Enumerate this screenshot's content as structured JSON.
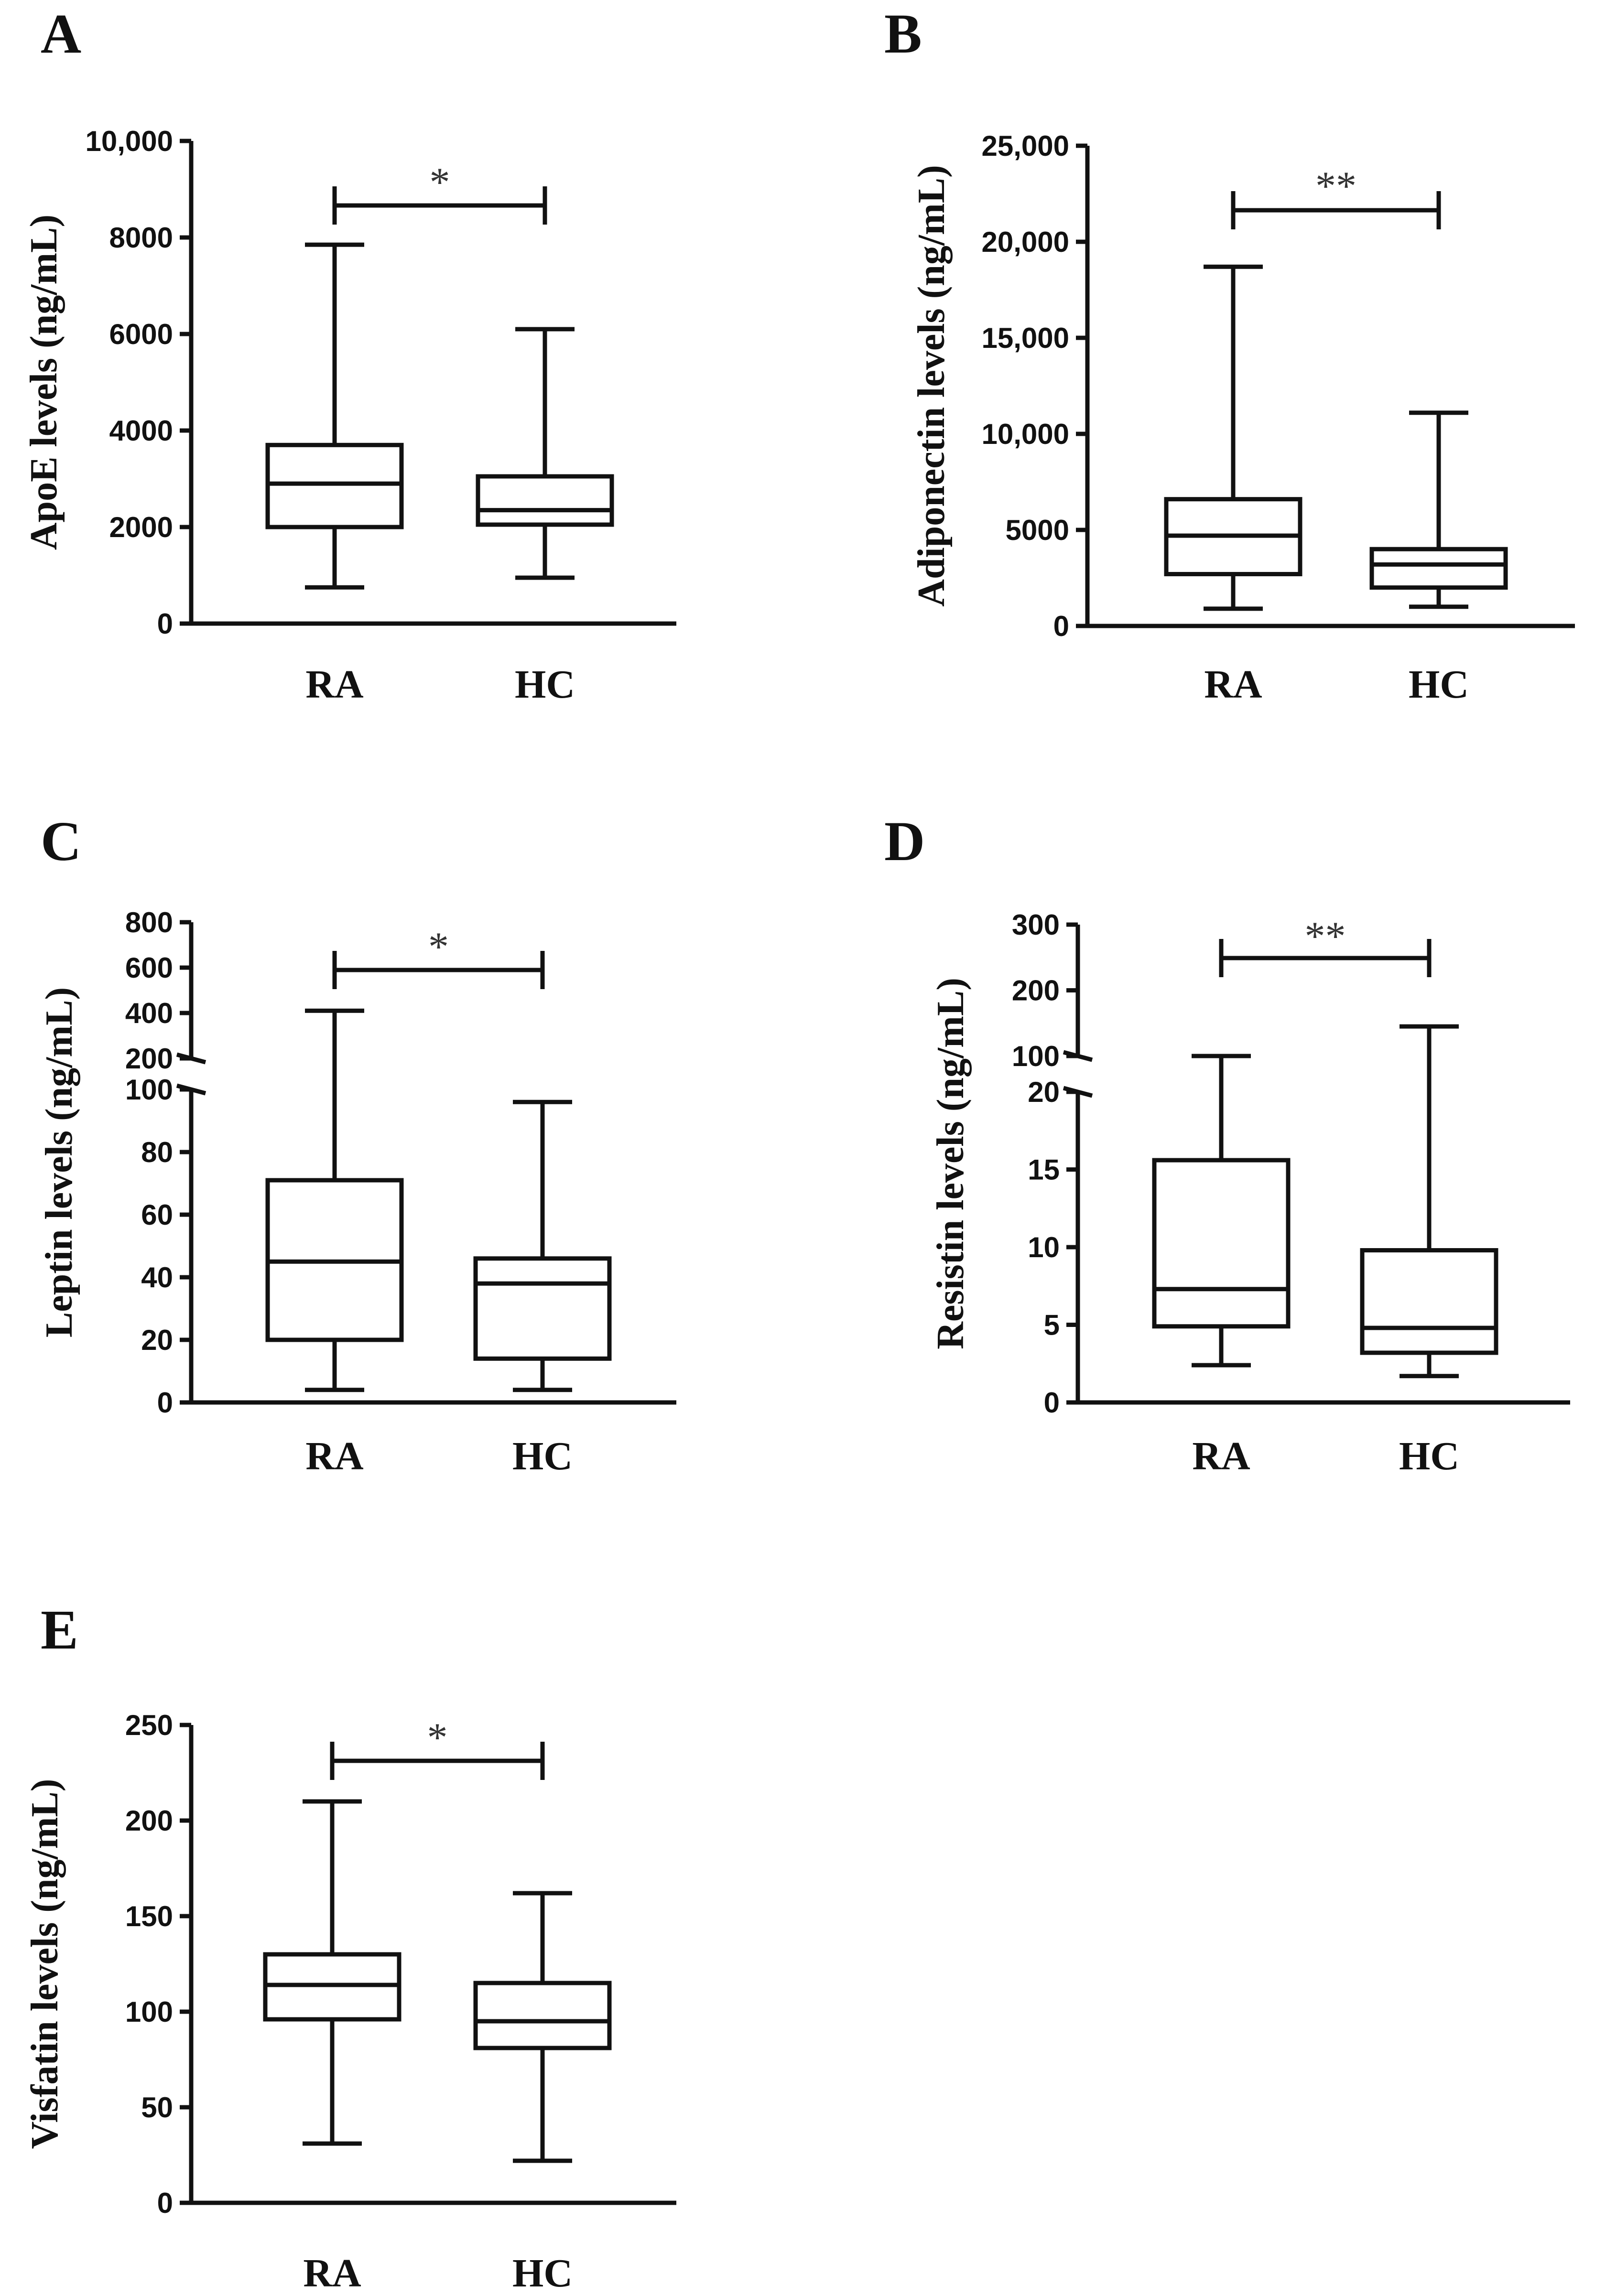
{
  "chart_data": [
    {
      "panel": "A",
      "type": "boxplot",
      "ylabel": "ApoE levels (ng/mL)",
      "categories": [
        "RA",
        "HC"
      ],
      "ylim": [
        0,
        10000
      ],
      "yticks": [
        0,
        2000,
        4000,
        6000,
        8000,
        10000
      ],
      "ytick_labels": [
        "0",
        "2000",
        "4000",
        "6000",
        "8000",
        "10,000"
      ],
      "boxes": [
        {
          "name": "RA",
          "min": 750,
          "q1": 2000,
          "median": 2900,
          "q3": 3700,
          "max": 7850
        },
        {
          "name": "HC",
          "min": 950,
          "q1": 2050,
          "median": 2350,
          "q3": 3050,
          "max": 6100
        }
      ],
      "significance": "*"
    },
    {
      "panel": "B",
      "type": "boxplot",
      "ylabel": "Adiponectin levels (ng/mL)",
      "categories": [
        "RA",
        "HC"
      ],
      "ylim": [
        0,
        25000
      ],
      "yticks": [
        0,
        5000,
        10000,
        15000,
        20000,
        25000
      ],
      "ytick_labels": [
        "0",
        "5000",
        "10,000",
        "15,000",
        "20,000",
        "25,000"
      ],
      "boxes": [
        {
          "name": "RA",
          "min": 900,
          "q1": 2700,
          "median": 4700,
          "q3": 6600,
          "max": 18700
        },
        {
          "name": "HC",
          "min": 1000,
          "q1": 2000,
          "median": 3200,
          "q3": 4000,
          "max": 11100
        }
      ],
      "significance": "**"
    },
    {
      "panel": "C",
      "type": "boxplot",
      "ylabel": "Leptin levels (ng/mL)",
      "categories": [
        "RA",
        "HC"
      ],
      "broken_axis": true,
      "lower_ylim": [
        0,
        100
      ],
      "lower_yticks": [
        0,
        20,
        40,
        60,
        80,
        100
      ],
      "lower_ytick_labels": [
        "0",
        "20",
        "40",
        "60",
        "80",
        "100"
      ],
      "upper_ylim": [
        200,
        800
      ],
      "upper_yticks": [
        200,
        400,
        600,
        800
      ],
      "upper_ytick_labels": [
        "200",
        "400",
        "600",
        "800"
      ],
      "boxes": [
        {
          "name": "RA",
          "min": 4,
          "q1": 20,
          "median": 45,
          "q3": 71,
          "max": 410
        },
        {
          "name": "HC",
          "min": 4,
          "q1": 14,
          "median": 38,
          "q3": 46,
          "max": 96
        }
      ],
      "significance": "*"
    },
    {
      "panel": "D",
      "type": "boxplot",
      "ylabel": "Resistin levels (ng/mL)",
      "categories": [
        "RA",
        "HC"
      ],
      "broken_axis": true,
      "lower_ylim": [
        0,
        20
      ],
      "lower_yticks": [
        0,
        5,
        10,
        15,
        20
      ],
      "lower_ytick_labels": [
        "0",
        "5",
        "10",
        "15",
        "20"
      ],
      "upper_ylim": [
        100,
        300
      ],
      "upper_yticks": [
        100,
        200,
        300
      ],
      "upper_ytick_labels": [
        "100",
        "200",
        "300"
      ],
      "boxes": [
        {
          "name": "RA",
          "min": 2.4,
          "q1": 4.9,
          "median": 7.3,
          "q3": 15.6,
          "max": 100
        },
        {
          "name": "HC",
          "min": 1.7,
          "q1": 3.2,
          "median": 4.8,
          "q3": 9.8,
          "max": 145
        }
      ],
      "significance": "**"
    },
    {
      "panel": "E",
      "type": "boxplot",
      "ylabel": "Visfatin levels (ng/mL)",
      "categories": [
        "RA",
        "HC"
      ],
      "ylim": [
        0,
        250
      ],
      "yticks": [
        0,
        50,
        100,
        150,
        200,
        250
      ],
      "ytick_labels": [
        "0",
        "50",
        "100",
        "150",
        "200",
        "250"
      ],
      "boxes": [
        {
          "name": "RA",
          "min": 31,
          "q1": 96,
          "median": 114,
          "q3": 130,
          "max": 210
        },
        {
          "name": "HC",
          "min": 22,
          "q1": 81,
          "median": 95,
          "q3": 115,
          "max": 162
        }
      ],
      "significance": "*"
    }
  ]
}
